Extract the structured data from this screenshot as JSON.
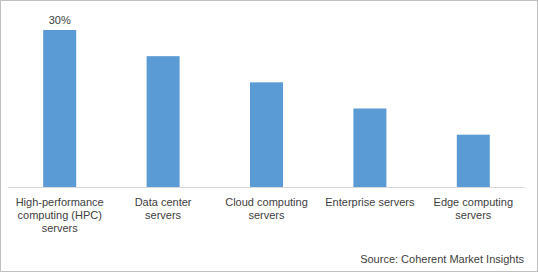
{
  "chart_data": {
    "type": "bar",
    "categories": [
      "High-performance computing (HPC) servers",
      "Data center servers",
      "Cloud computing servers",
      "Enterprise servers",
      "Edge computing servers"
    ],
    "values": [
      30,
      25,
      20,
      15,
      10
    ],
    "value_labels": [
      "30%",
      null,
      null,
      null,
      null
    ],
    "color": "#5b9bd5",
    "ylim": [
      0,
      30
    ],
    "tick_labels": "x",
    "source": "Source: Coherent Market Insights"
  }
}
